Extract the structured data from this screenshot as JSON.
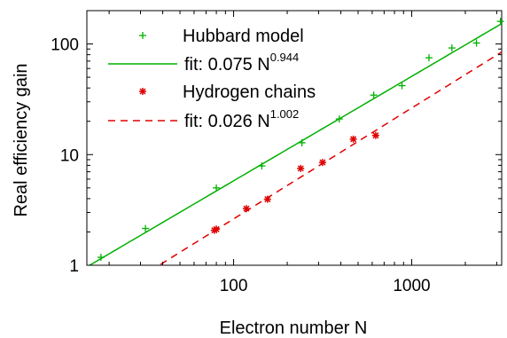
{
  "chart_data": {
    "type": "scatter",
    "xlabel": "Electron number N",
    "ylabel": "Real efficiency gain",
    "xscale": "log",
    "yscale": "log",
    "xlim": [
      15,
      3200
    ],
    "ylim": [
      1,
      200
    ],
    "xticks": [
      {
        "value": 100,
        "label": "100"
      },
      {
        "value": 1000,
        "label": "1000"
      }
    ],
    "yticks": [
      {
        "value": 1,
        "label": "1"
      },
      {
        "value": 10,
        "label": "10"
      },
      {
        "value": 100,
        "label": "100"
      }
    ],
    "grid": false,
    "legend_position": "top-left",
    "series": [
      {
        "name": "Hubbard model",
        "marker": "plus",
        "color": "#00b000",
        "points": [
          [
            18,
            1.18
          ],
          [
            32,
            2.15
          ],
          [
            80,
            5.0
          ],
          [
            144,
            7.9
          ],
          [
            242,
            12.8
          ],
          [
            392,
            21.0
          ],
          [
            612,
            34.5
          ],
          [
            882,
            42.0
          ],
          [
            1250,
            75.0
          ],
          [
            1682,
            92.0
          ],
          [
            2310,
            102.0
          ],
          [
            3150,
            160.0
          ]
        ]
      },
      {
        "name": "Hydrogen chains",
        "marker": "star",
        "color": "#e00000",
        "points": [
          [
            78,
            2.07
          ],
          [
            80,
            2.12
          ],
          [
            118,
            3.25
          ],
          [
            155,
            3.95
          ],
          [
            238,
            7.5
          ],
          [
            316,
            8.5
          ],
          [
            470,
            13.8
          ],
          [
            628,
            14.9
          ]
        ]
      }
    ],
    "fits": [
      {
        "label": "fit:  0.075 N",
        "exponent": "0.944",
        "a": 0.075,
        "b": 0.944,
        "color": "#00b000",
        "dash": "solid"
      },
      {
        "label": "fit:  0.026 N",
        "exponent": "1.002",
        "a": 0.026,
        "b": 1.002,
        "color": "#e00000",
        "dash": "dashed"
      }
    ]
  }
}
